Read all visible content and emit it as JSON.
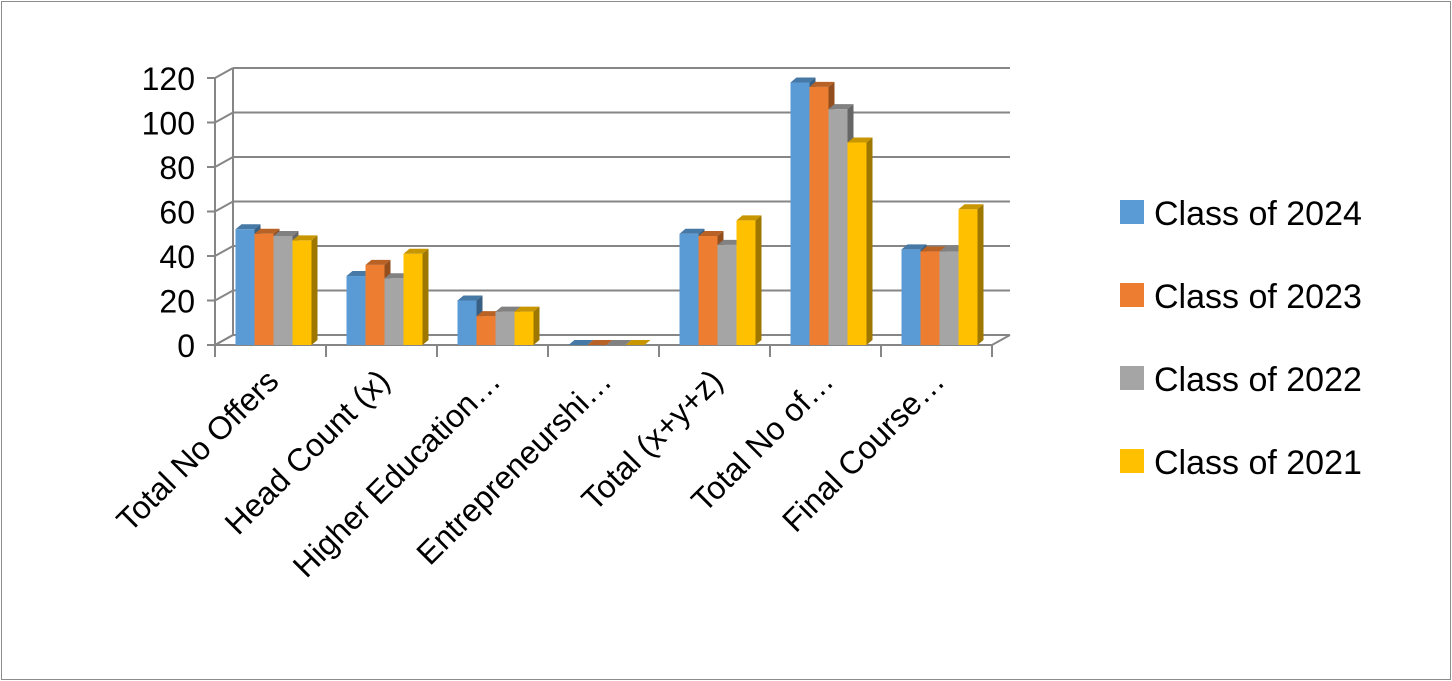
{
  "chart_data": {
    "type": "bar",
    "title": "",
    "xlabel": "",
    "ylabel": "",
    "ylim": [
      0,
      120
    ],
    "yticks": [
      "0",
      "20",
      "40",
      "60",
      "80",
      "100",
      "120"
    ],
    "categories": [
      "Total No Offers",
      "Head Count (x)",
      "Higher Education…",
      "Entrepreneurshi…",
      "Total (x+y+z)",
      "Total No of…",
      "Final Course…"
    ],
    "series": [
      {
        "name": "Class of 2024",
        "color": "#5b9bd5",
        "values": [
          52,
          31,
          20,
          0,
          50,
          118,
          43
        ]
      },
      {
        "name": "Class of 2023",
        "color": "#ed7d31",
        "values": [
          50,
          36,
          13,
          0,
          49,
          116,
          42
        ]
      },
      {
        "name": "Class of 2022",
        "color": "#a5a5a5",
        "values": [
          49,
          30,
          15,
          0,
          45,
          106,
          42
        ]
      },
      {
        "name": "Class of 2021",
        "color": "#ffc000",
        "values": [
          47,
          41,
          15,
          0,
          56,
          91,
          61
        ]
      }
    ],
    "grid": true,
    "legend": "right",
    "style": "3d-clustered-column"
  }
}
